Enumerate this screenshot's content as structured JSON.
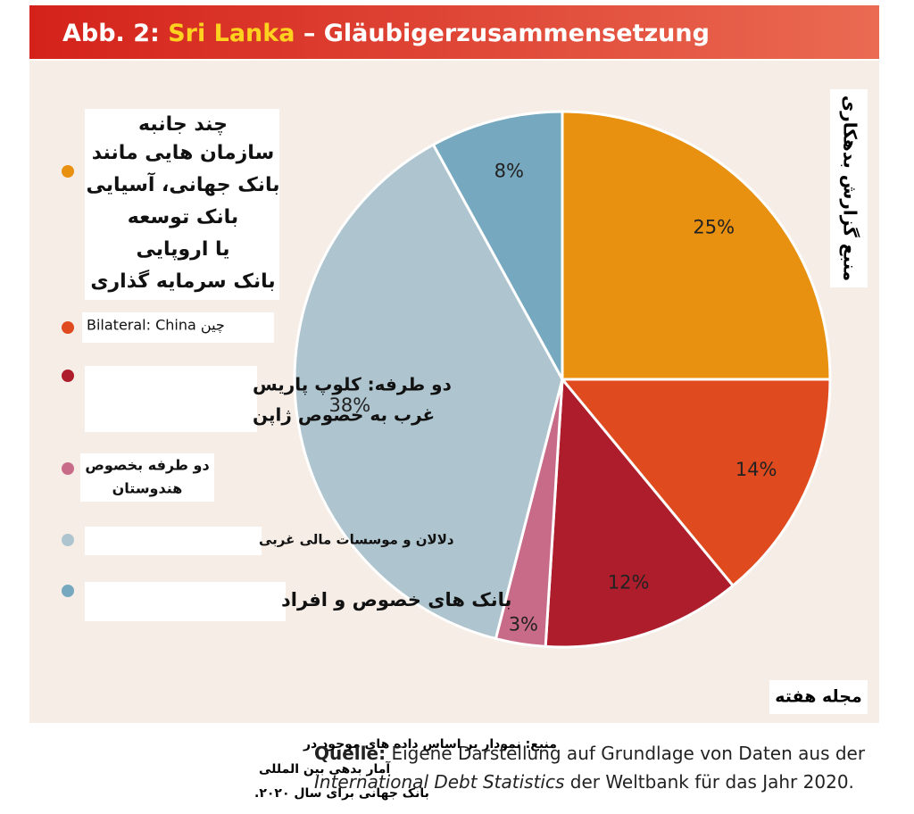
{
  "chart_data": {
    "type": "pie",
    "title": {
      "prefix": "Abb. 2:",
      "highlight": "Sri Lanka",
      "rest": "– Gläubigerzusammensetzung"
    },
    "categories": [
      [
        "چند جانبه",
        "سازمان هایی مانند",
        "بانک جهانی، آسیایی",
        "بانک توسعه",
        "یا اروپایی",
        "بانک سرمایه گذاری"
      ],
      [
        "Bilateral: China چین"
      ],
      [
        "دو طرفه: کلوپ پاریس",
        "غرب به خصوص ژاپن"
      ],
      [
        "دو طرفه بخصوص",
        "هندوستان"
      ],
      [
        "دلالان و موسسات مالی غربی"
      ],
      [
        "بانک های خصوص و افراد"
      ]
    ],
    "values": [
      25,
      14,
      12,
      3,
      38,
      8
    ],
    "value_labels": [
      "25%",
      "14%",
      "12%",
      "3%",
      "38%",
      "8%"
    ],
    "colors": [
      "#e8900f",
      "#e04a1f",
      "#ad1d2b",
      "#c86b88",
      "#aec5cf",
      "#76a8bf"
    ],
    "side_note": "منبع گزارش بدهکاری",
    "corner_note": "مجله هفته",
    "source_fa": [
      "منبع: نمودار بر اساس داده های موجود در",
      "آمار بدهی بین المللی",
      "بانک جهانی برای سال ۲۰۲۰."
    ],
    "source": {
      "label": "Quelle:",
      "line1": "Eigene Darstellung auf Grundlage von Daten aus der",
      "italic": "International Debt Statistics",
      "line2": "der Weltbank für das Jahr 2020."
    }
  }
}
